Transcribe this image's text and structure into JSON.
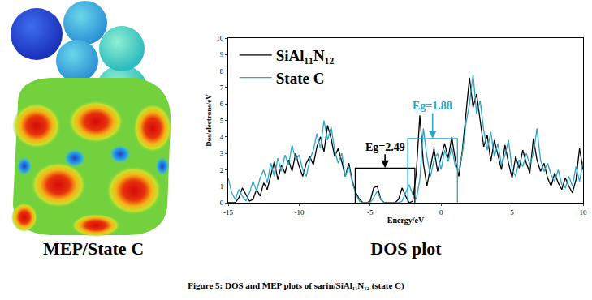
{
  "chart_data": {
    "type": "line",
    "x_label": "Energy/eV",
    "y_label": "Dos/electrons/eV",
    "x": [
      -15,
      -14.75,
      -14.5,
      -14.25,
      -14,
      -13.75,
      -13.5,
      -13.25,
      -13,
      -12.75,
      -12.5,
      -12.25,
      -12,
      -11.75,
      -11.5,
      -11.25,
      -11,
      -10.75,
      -10.5,
      -10.25,
      -10,
      -9.75,
      -9.5,
      -9.25,
      -9,
      -8.75,
      -8.5,
      -8.25,
      -8,
      -7.75,
      -7.5,
      -7.25,
      -7,
      -6.75,
      -6.5,
      -6.25,
      -6,
      -5.75,
      -5.5,
      -5.25,
      -5,
      -4.75,
      -4.5,
      -4.25,
      -4,
      -3.75,
      -3.5,
      -3.25,
      -3,
      -2.75,
      -2.5,
      -2.25,
      -2,
      -1.75,
      -1.5,
      -1.25,
      -1,
      -0.75,
      -0.5,
      -0.25,
      0,
      0.25,
      0.5,
      0.75,
      1,
      1.25,
      1.5,
      1.75,
      2,
      2.25,
      2.5,
      2.75,
      3,
      3.25,
      3.5,
      3.75,
      4,
      4.25,
      4.5,
      4.75,
      5,
      5.25,
      5.5,
      5.75,
      6,
      6.25,
      6.5,
      6.75,
      7,
      7.25,
      7.5,
      7.75,
      8,
      8.25,
      8.5,
      8.75,
      9,
      9.25,
      9.5,
      9.75,
      10
    ],
    "series": [
      {
        "name": "SiAl₁₁N₁₂",
        "color": "#000000",
        "values": [
          0.0,
          0.0,
          0.0,
          0.3,
          0.9,
          0.5,
          0.1,
          0.2,
          0.8,
          0.4,
          1.2,
          0.8,
          1.6,
          2.5,
          1.4,
          2.3,
          1.8,
          2.6,
          1.9,
          3.0,
          2.2,
          1.6,
          2.4,
          2.8,
          2.3,
          3.4,
          4.0,
          3.1,
          4.7,
          3.9,
          2.8,
          3.3,
          2.5,
          1.6,
          2.4,
          1.3,
          0.6,
          0.2,
          0.0,
          0.0,
          0.1,
          0.9,
          1.0,
          0.2,
          0.0,
          0.0,
          0.0,
          0.0,
          0.2,
          0.9,
          0.4,
          0.0,
          0.1,
          1.8,
          5.3,
          2.4,
          1.0,
          2.2,
          3.3,
          1.9,
          2.8,
          3.6,
          2.7,
          4.0,
          2.6,
          1.6,
          3.2,
          5.6,
          7.6,
          5.8,
          6.6,
          5.0,
          3.4,
          4.1,
          2.5,
          3.8,
          2.9,
          2.0,
          3.5,
          2.4,
          1.5,
          2.8,
          2.1,
          3.2,
          2.4,
          1.8,
          3.9,
          2.6,
          1.9,
          2.4,
          1.5,
          1.0,
          1.8,
          1.2,
          0.8,
          1.5,
          1.0,
          0.6,
          1.4,
          3.3,
          2.0
        ]
      },
      {
        "name": "State C",
        "color": "#2aa7c9",
        "values": [
          1.5,
          0.6,
          0.2,
          0.8,
          0.4,
          0.1,
          0.6,
          1.3,
          0.7,
          1.5,
          2.0,
          1.2,
          2.4,
          1.6,
          2.7,
          1.9,
          2.9,
          2.3,
          3.5,
          2.6,
          2.9,
          2.0,
          1.6,
          2.6,
          3.2,
          4.2,
          3.3,
          5.0,
          3.8,
          4.6,
          3.2,
          2.4,
          3.0,
          1.6,
          2.2,
          1.2,
          0.5,
          0.1,
          0.0,
          0.0,
          0.0,
          0.3,
          0.7,
          0.2,
          0.0,
          0.0,
          0.0,
          0.0,
          0.0,
          0.1,
          0.6,
          1.1,
          0.5,
          0.2,
          1.4,
          4.5,
          2.8,
          1.6,
          2.6,
          3.0,
          2.0,
          3.2,
          2.5,
          3.4,
          2.2,
          2.0,
          3.0,
          4.8,
          6.0,
          7.8,
          5.4,
          6.2,
          4.4,
          3.2,
          4.3,
          2.8,
          3.6,
          2.3,
          2.9,
          3.8,
          2.0,
          1.6,
          2.6,
          2.2,
          3.0,
          2.3,
          3.0,
          4.5,
          2.6,
          1.9,
          2.4,
          1.7,
          1.3,
          2.0,
          1.1,
          0.9,
          1.6,
          1.0,
          2.2,
          1.3,
          2.5
        ]
      }
    ],
    "xlim": [
      -15,
      10
    ],
    "ylim": [
      0,
      10
    ],
    "xticks": [
      -15,
      -10,
      -5,
      0,
      5,
      10
    ],
    "yticks": [
      0,
      1,
      2,
      3,
      4,
      5,
      6,
      7,
      8,
      9,
      10
    ],
    "grid": false,
    "legend": "upper left",
    "annotations": [
      {
        "text": "Eg=2.49",
        "color": "#000000",
        "x_start": -6.05,
        "x_end": -1.85,
        "height": 2.1
      },
      {
        "text": "Eg=1.88",
        "color": "#2aa7c9",
        "x_start": -2.35,
        "x_end": 1.15,
        "height": 3.9
      }
    ]
  },
  "panel_labels": {
    "left": "MEP/State C",
    "right": "DOS plot"
  },
  "caption": "Figure 5: DOS and MEP plots of sarin/SiAl₁₁N₁₂ (state C)"
}
